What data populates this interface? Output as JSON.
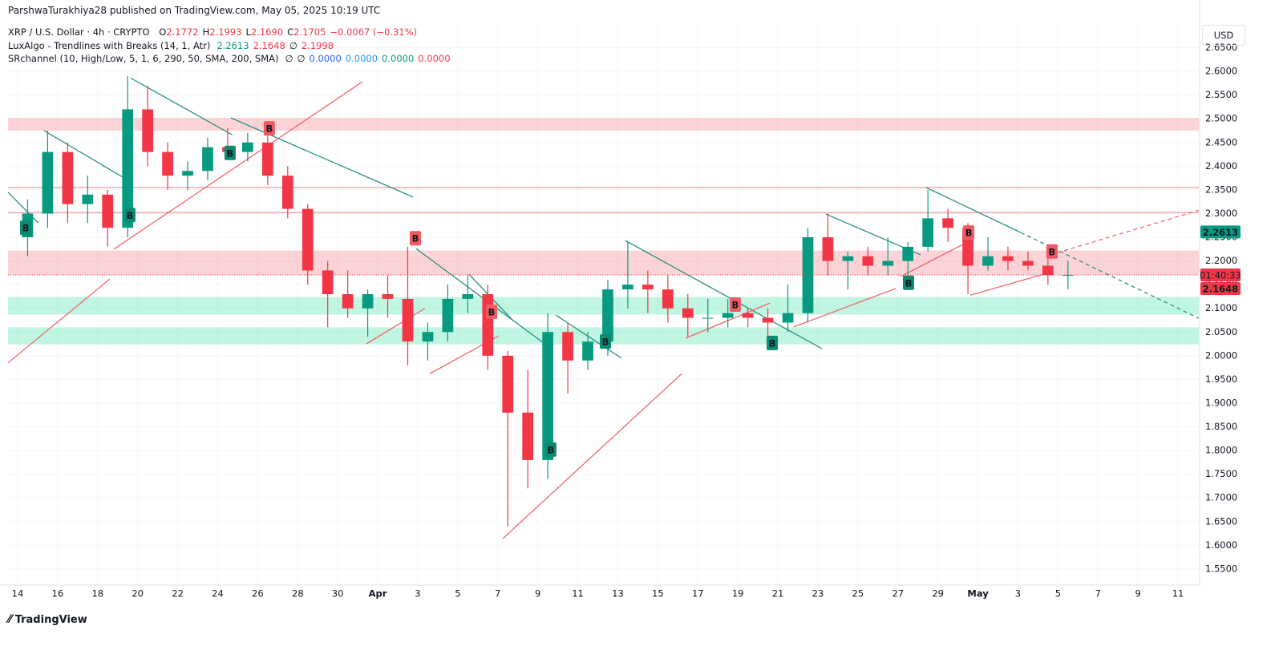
{
  "header": {
    "publisher": "ParshwaTurakhiya28 published on TradingView.com, May 05, 2025 10:19 UTC",
    "symbol": "XRP / U.S. Dollar · 4h · CRYPTO",
    "ohlc": [
      {
        "key": "O",
        "value": "2.1772"
      },
      {
        "key": "H",
        "value": "2.1993"
      },
      {
        "key": "L",
        "value": "2.1690"
      },
      {
        "key": "C",
        "value": "2.1705"
      }
    ],
    "change": "−0.0067 (−0.31%)",
    "indicators": [
      {
        "name": "LuxAlgo - Trendlines with Breaks (14, 1, Atr)",
        "values": [
          {
            "text": "2.2613",
            "color": "#089981"
          },
          {
            "text": "2.1648",
            "color": "#f23645"
          },
          {
            "text": "∅",
            "color": "#131722"
          },
          {
            "text": "2.1998",
            "color": "#f23645"
          }
        ]
      },
      {
        "name": "SRchannel (10, High/Low, 5, 1, 6, 290, 50, SMA, 200, SMA)",
        "values": [
          {
            "text": "∅",
            "color": "#131722"
          },
          {
            "text": "∅",
            "color": "#131722"
          },
          {
            "text": "0.0000",
            "color": "#2962ff"
          },
          {
            "text": "0.0000",
            "color": "#2196f3"
          },
          {
            "text": "0.0000",
            "color": "#089981"
          },
          {
            "text": "0.0000",
            "color": "#f23645"
          }
        ]
      }
    ],
    "currency": "USD",
    "logo": "TradingView"
  },
  "chart_data": {
    "type": "candlestick",
    "up_color": "#089981",
    "down_color": "#f23645",
    "grid": true,
    "x": [
      0.5,
      1.5,
      2.5,
      3.5,
      4.5,
      5.5,
      6.5,
      7.5,
      8.5,
      9.5,
      10.5,
      11.5,
      12.5,
      13.5,
      14.5,
      15.5,
      16.5,
      17.5,
      18.5,
      19.5,
      20.5,
      21.5,
      22.5,
      23.5,
      24.5,
      25.5,
      26.5,
      27.5,
      28.5,
      29.5,
      30.5,
      31.5,
      32.5,
      33.5,
      34.5,
      35.5,
      36.5,
      37.5,
      38.5,
      39.5,
      40.5,
      41.5,
      42.5,
      43.5,
      44.5,
      45.5,
      46.5,
      47.5,
      48.5,
      49.5,
      50.5,
      51.5,
      52.5
    ],
    "open": [
      2.25,
      2.3,
      2.43,
      2.32,
      2.34,
      2.27,
      2.52,
      2.43,
      2.38,
      2.39,
      2.44,
      2.43,
      2.45,
      2.38,
      2.31,
      2.18,
      2.13,
      2.1,
      2.13,
      2.12,
      2.03,
      2.05,
      2.12,
      2.13,
      2.0,
      1.88,
      1.78,
      2.05,
      1.99,
      2.03,
      2.14,
      2.15,
      2.14,
      2.1,
      2.08,
      2.08,
      2.09,
      2.08,
      2.07,
      2.09,
      2.25,
      2.2,
      2.21,
      2.19,
      2.2,
      2.23,
      2.29,
      2.27,
      2.19,
      2.21,
      2.2,
      2.19,
      2.17
    ],
    "high": [
      2.33,
      2.475,
      2.45,
      2.38,
      2.35,
      2.59,
      2.57,
      2.45,
      2.41,
      2.46,
      2.48,
      2.47,
      2.48,
      2.4,
      2.32,
      2.2,
      2.18,
      2.14,
      2.17,
      2.23,
      2.07,
      2.15,
      2.17,
      2.15,
      2.01,
      1.97,
      2.09,
      2.07,
      2.05,
      2.16,
      2.24,
      2.18,
      2.17,
      2.13,
      2.12,
      2.12,
      2.1,
      2.1,
      2.15,
      2.27,
      2.3,
      2.22,
      2.23,
      2.25,
      2.24,
      2.35,
      2.31,
      2.28,
      2.25,
      2.23,
      2.22,
      2.22,
      2.2
    ],
    "low": [
      2.21,
      2.27,
      2.28,
      2.28,
      2.23,
      2.25,
      2.4,
      2.35,
      2.35,
      2.37,
      2.42,
      2.41,
      2.36,
      2.29,
      2.15,
      2.06,
      2.08,
      2.04,
      2.08,
      1.98,
      1.99,
      2.03,
      2.09,
      1.97,
      1.64,
      1.72,
      1.74,
      1.92,
      1.97,
      2.0,
      2.1,
      2.09,
      2.07,
      2.04,
      2.05,
      2.06,
      2.06,
      2.03,
      2.05,
      2.07,
      2.17,
      2.14,
      2.17,
      2.17,
      2.16,
      2.22,
      2.24,
      2.13,
      2.18,
      2.18,
      2.18,
      2.15,
      2.14
    ],
    "close": [
      2.3,
      2.43,
      2.32,
      2.34,
      2.27,
      2.52,
      2.43,
      2.38,
      2.39,
      2.44,
      2.43,
      2.45,
      2.38,
      2.31,
      2.18,
      2.13,
      2.1,
      2.13,
      2.12,
      2.03,
      2.05,
      2.12,
      2.13,
      2.0,
      1.88,
      1.78,
      2.05,
      1.99,
      2.03,
      2.14,
      2.15,
      2.14,
      2.1,
      2.08,
      2.08,
      2.09,
      2.08,
      2.07,
      2.09,
      2.25,
      2.2,
      2.21,
      2.19,
      2.2,
      2.23,
      2.29,
      2.27,
      2.19,
      2.21,
      2.2,
      2.19,
      2.17,
      2.1705
    ],
    "xlim": [
      -0.48,
      59.04
    ],
    "xticks": [
      {
        "value": 0,
        "label": "14"
      },
      {
        "value": 2,
        "label": "16"
      },
      {
        "value": 4,
        "label": "18"
      },
      {
        "value": 6,
        "label": "20"
      },
      {
        "value": 8,
        "label": "22"
      },
      {
        "value": 10,
        "label": "24"
      },
      {
        "value": 12,
        "label": "26"
      },
      {
        "value": 14,
        "label": "28"
      },
      {
        "value": 16,
        "label": "30"
      },
      {
        "value": 18,
        "label": "Apr"
      },
      {
        "value": 20,
        "label": "3"
      },
      {
        "value": 22,
        "label": "5"
      },
      {
        "value": 24,
        "label": "7"
      },
      {
        "value": 26,
        "label": "9"
      },
      {
        "value": 28,
        "label": "11"
      },
      {
        "value": 30,
        "label": "13"
      },
      {
        "value": 32,
        "label": "15"
      },
      {
        "value": 34,
        "label": "17"
      },
      {
        "value": 36,
        "label": "19"
      },
      {
        "value": 38,
        "label": "21"
      },
      {
        "value": 40,
        "label": "23"
      },
      {
        "value": 42,
        "label": "25"
      },
      {
        "value": 44,
        "label": "27"
      },
      {
        "value": 46,
        "label": "29"
      },
      {
        "value": 48,
        "label": "May"
      },
      {
        "value": 50,
        "label": "3"
      },
      {
        "value": 52,
        "label": "5"
      },
      {
        "value": 54,
        "label": "7"
      },
      {
        "value": 56,
        "label": "9"
      },
      {
        "value": 58,
        "label": "11"
      }
    ],
    "ylim": [
      1.516,
      2.7
    ],
    "yticks": [
      {
        "value": 1.55,
        "label": "1.5500"
      },
      {
        "value": 1.6,
        "label": "1.6000"
      },
      {
        "value": 1.65,
        "label": "1.6500"
      },
      {
        "value": 1.7,
        "label": "1.7000"
      },
      {
        "value": 1.75,
        "label": "1.7500"
      },
      {
        "value": 1.8,
        "label": "1.8000"
      },
      {
        "value": 1.85,
        "label": "1.8500"
      },
      {
        "value": 1.9,
        "label": "1.9000"
      },
      {
        "value": 1.95,
        "label": "1.9500"
      },
      {
        "value": 2.0,
        "label": "2.0000"
      },
      {
        "value": 2.05,
        "label": "2.0500"
      },
      {
        "value": 2.1,
        "label": "2.1000"
      },
      {
        "value": 2.15,
        "label": "2.1500"
      },
      {
        "value": 2.2,
        "label": "2.2000"
      },
      {
        "value": 2.25,
        "label": "2.2500"
      },
      {
        "value": 2.3,
        "label": "2.3000"
      },
      {
        "value": 2.35,
        "label": "2.3500"
      },
      {
        "value": 2.4,
        "label": "2.4000"
      },
      {
        "value": 2.45,
        "label": "2.4500"
      },
      {
        "value": 2.5,
        "label": "2.5000"
      },
      {
        "value": 2.55,
        "label": "2.5500"
      },
      {
        "value": 2.6,
        "label": "2.6000"
      },
      {
        "value": 2.65,
        "label": "2.6500"
      }
    ],
    "zones": [
      {
        "low": 2.475,
        "high": 2.502,
        "color": "rgba(242,54,69,0.22)"
      },
      {
        "low": 2.17,
        "high": 2.222,
        "color": "rgba(242,54,69,0.22)"
      },
      {
        "low": 2.087,
        "high": 2.124,
        "color": "rgba(8,220,140,0.25)"
      },
      {
        "low": 2.024,
        "high": 2.06,
        "color": "rgba(8,220,140,0.25)"
      }
    ],
    "levels": [
      {
        "value": 2.355,
        "color": "#f7a9ae"
      },
      {
        "value": 2.302,
        "color": "#f7a9ae"
      }
    ],
    "trendlines": [
      {
        "x1": -0.48,
        "y1": 2.345,
        "x2": 1.04,
        "y2": 2.28,
        "color": "#1b8a7a",
        "style": "solid"
      },
      {
        "x1": 1.32,
        "y1": 2.475,
        "x2": 5.45,
        "y2": 2.372,
        "color": "#1b8a7a",
        "style": "solid"
      },
      {
        "x1": 5.65,
        "y1": 2.586,
        "x2": 10.74,
        "y2": 2.466,
        "color": "#1b8a7a",
        "style": "solid"
      },
      {
        "x1": 10.66,
        "y1": 2.502,
        "x2": 19.76,
        "y2": 2.335,
        "color": "#1b8a7a",
        "style": "solid"
      },
      {
        "x1": 19.92,
        "y1": 2.226,
        "x2": 26.77,
        "y2": 2.012,
        "color": "#1b8a7a",
        "style": "solid"
      },
      {
        "x1": 22.56,
        "y1": 2.172,
        "x2": 24.77,
        "y2": 2.074,
        "color": "#1b8a7a",
        "style": "solid"
      },
      {
        "x1": 26.89,
        "y1": 2.086,
        "x2": 30.18,
        "y2": 1.995,
        "color": "#1b8a7a",
        "style": "solid"
      },
      {
        "x1": 30.38,
        "y1": 2.243,
        "x2": 40.2,
        "y2": 2.015,
        "color": "#1b8a7a",
        "style": "solid"
      },
      {
        "x1": 40.4,
        "y1": 2.299,
        "x2": 45.13,
        "y2": 2.213,
        "color": "#1b8a7a",
        "style": "solid"
      },
      {
        "x1": 45.41,
        "y1": 2.355,
        "x2": 50.14,
        "y2": 2.26,
        "color": "#1b8a7a",
        "style": "solid"
      },
      {
        "x1": 50.14,
        "y1": 2.26,
        "x2": 59.04,
        "y2": 2.079,
        "color": "#1b8a7a",
        "style": "dashed"
      },
      {
        "x1": -0.48,
        "y1": 1.985,
        "x2": 4.61,
        "y2": 2.162,
        "color": "#f05a62",
        "style": "solid"
      },
      {
        "x1": 4.81,
        "y1": 2.225,
        "x2": 17.23,
        "y2": 2.578,
        "color": "#f05a62",
        "style": "solid"
      },
      {
        "x1": 17.43,
        "y1": 2.025,
        "x2": 20.36,
        "y2": 2.1,
        "color": "#f05a62",
        "style": "solid"
      },
      {
        "x1": 20.6,
        "y1": 1.962,
        "x2": 24.05,
        "y2": 2.042,
        "color": "#f05a62",
        "style": "solid"
      },
      {
        "x1": 24.25,
        "y1": 1.614,
        "x2": 33.19,
        "y2": 1.962,
        "color": "#f05a62",
        "style": "solid"
      },
      {
        "x1": 33.39,
        "y1": 2.037,
        "x2": 37.6,
        "y2": 2.111,
        "color": "#f05a62",
        "style": "solid"
      },
      {
        "x1": 38.8,
        "y1": 2.061,
        "x2": 43.89,
        "y2": 2.142,
        "color": "#f05a62",
        "style": "solid"
      },
      {
        "x1": 44.13,
        "y1": 2.167,
        "x2": 47.62,
        "y2": 2.243,
        "color": "#f05a62",
        "style": "solid"
      },
      {
        "x1": 47.62,
        "y1": 2.128,
        "x2": 51.62,
        "y2": 2.176,
        "color": "#f05a62",
        "style": "solid"
      },
      {
        "x1": 51.62,
        "y1": 2.213,
        "x2": 59.04,
        "y2": 2.307,
        "color": "#f05a62",
        "style": "dashed"
      }
    ],
    "signals": [
      {
        "x": 0.4,
        "price": 2.27,
        "label": "B",
        "color": "#0b8a6f"
      },
      {
        "x": 5.61,
        "price": 2.297,
        "label": "B",
        "color": "#0b8a6f"
      },
      {
        "x": 10.62,
        "price": 2.428,
        "label": "B",
        "color": "#0b8a6f"
      },
      {
        "x": 26.65,
        "price": 1.802,
        "label": "B",
        "color": "#0b8a6f"
      },
      {
        "x": 29.38,
        "price": 2.03,
        "label": "B",
        "color": "#0b8a6f"
      },
      {
        "x": 37.72,
        "price": 2.027,
        "label": "B",
        "color": "#0b8a6f"
      },
      {
        "x": 44.53,
        "price": 2.154,
        "label": "B",
        "color": "#0b8a6f"
      },
      {
        "x": 12.58,
        "price": 2.48,
        "label": "B",
        "color": "#f05a62"
      },
      {
        "x": 19.88,
        "price": 2.248,
        "label": "B",
        "color": "#f05a62"
      },
      {
        "x": 23.69,
        "price": 2.093,
        "label": "B",
        "color": "#f05a62"
      },
      {
        "x": 35.87,
        "price": 2.108,
        "label": "B",
        "color": "#f05a62"
      },
      {
        "x": 47.54,
        "price": 2.26,
        "label": "B",
        "color": "#f05a62"
      },
      {
        "x": 51.7,
        "price": 2.22,
        "label": "B",
        "color": "#f05a62"
      }
    ],
    "last_price": 2.1705,
    "countdown": "01:40:33",
    "price_labels": [
      {
        "value": 2.2613,
        "label": "2.2613",
        "color": "#089981"
      },
      {
        "value": 2.1648,
        "label": "2.1648",
        "color": "#f23645"
      }
    ]
  }
}
